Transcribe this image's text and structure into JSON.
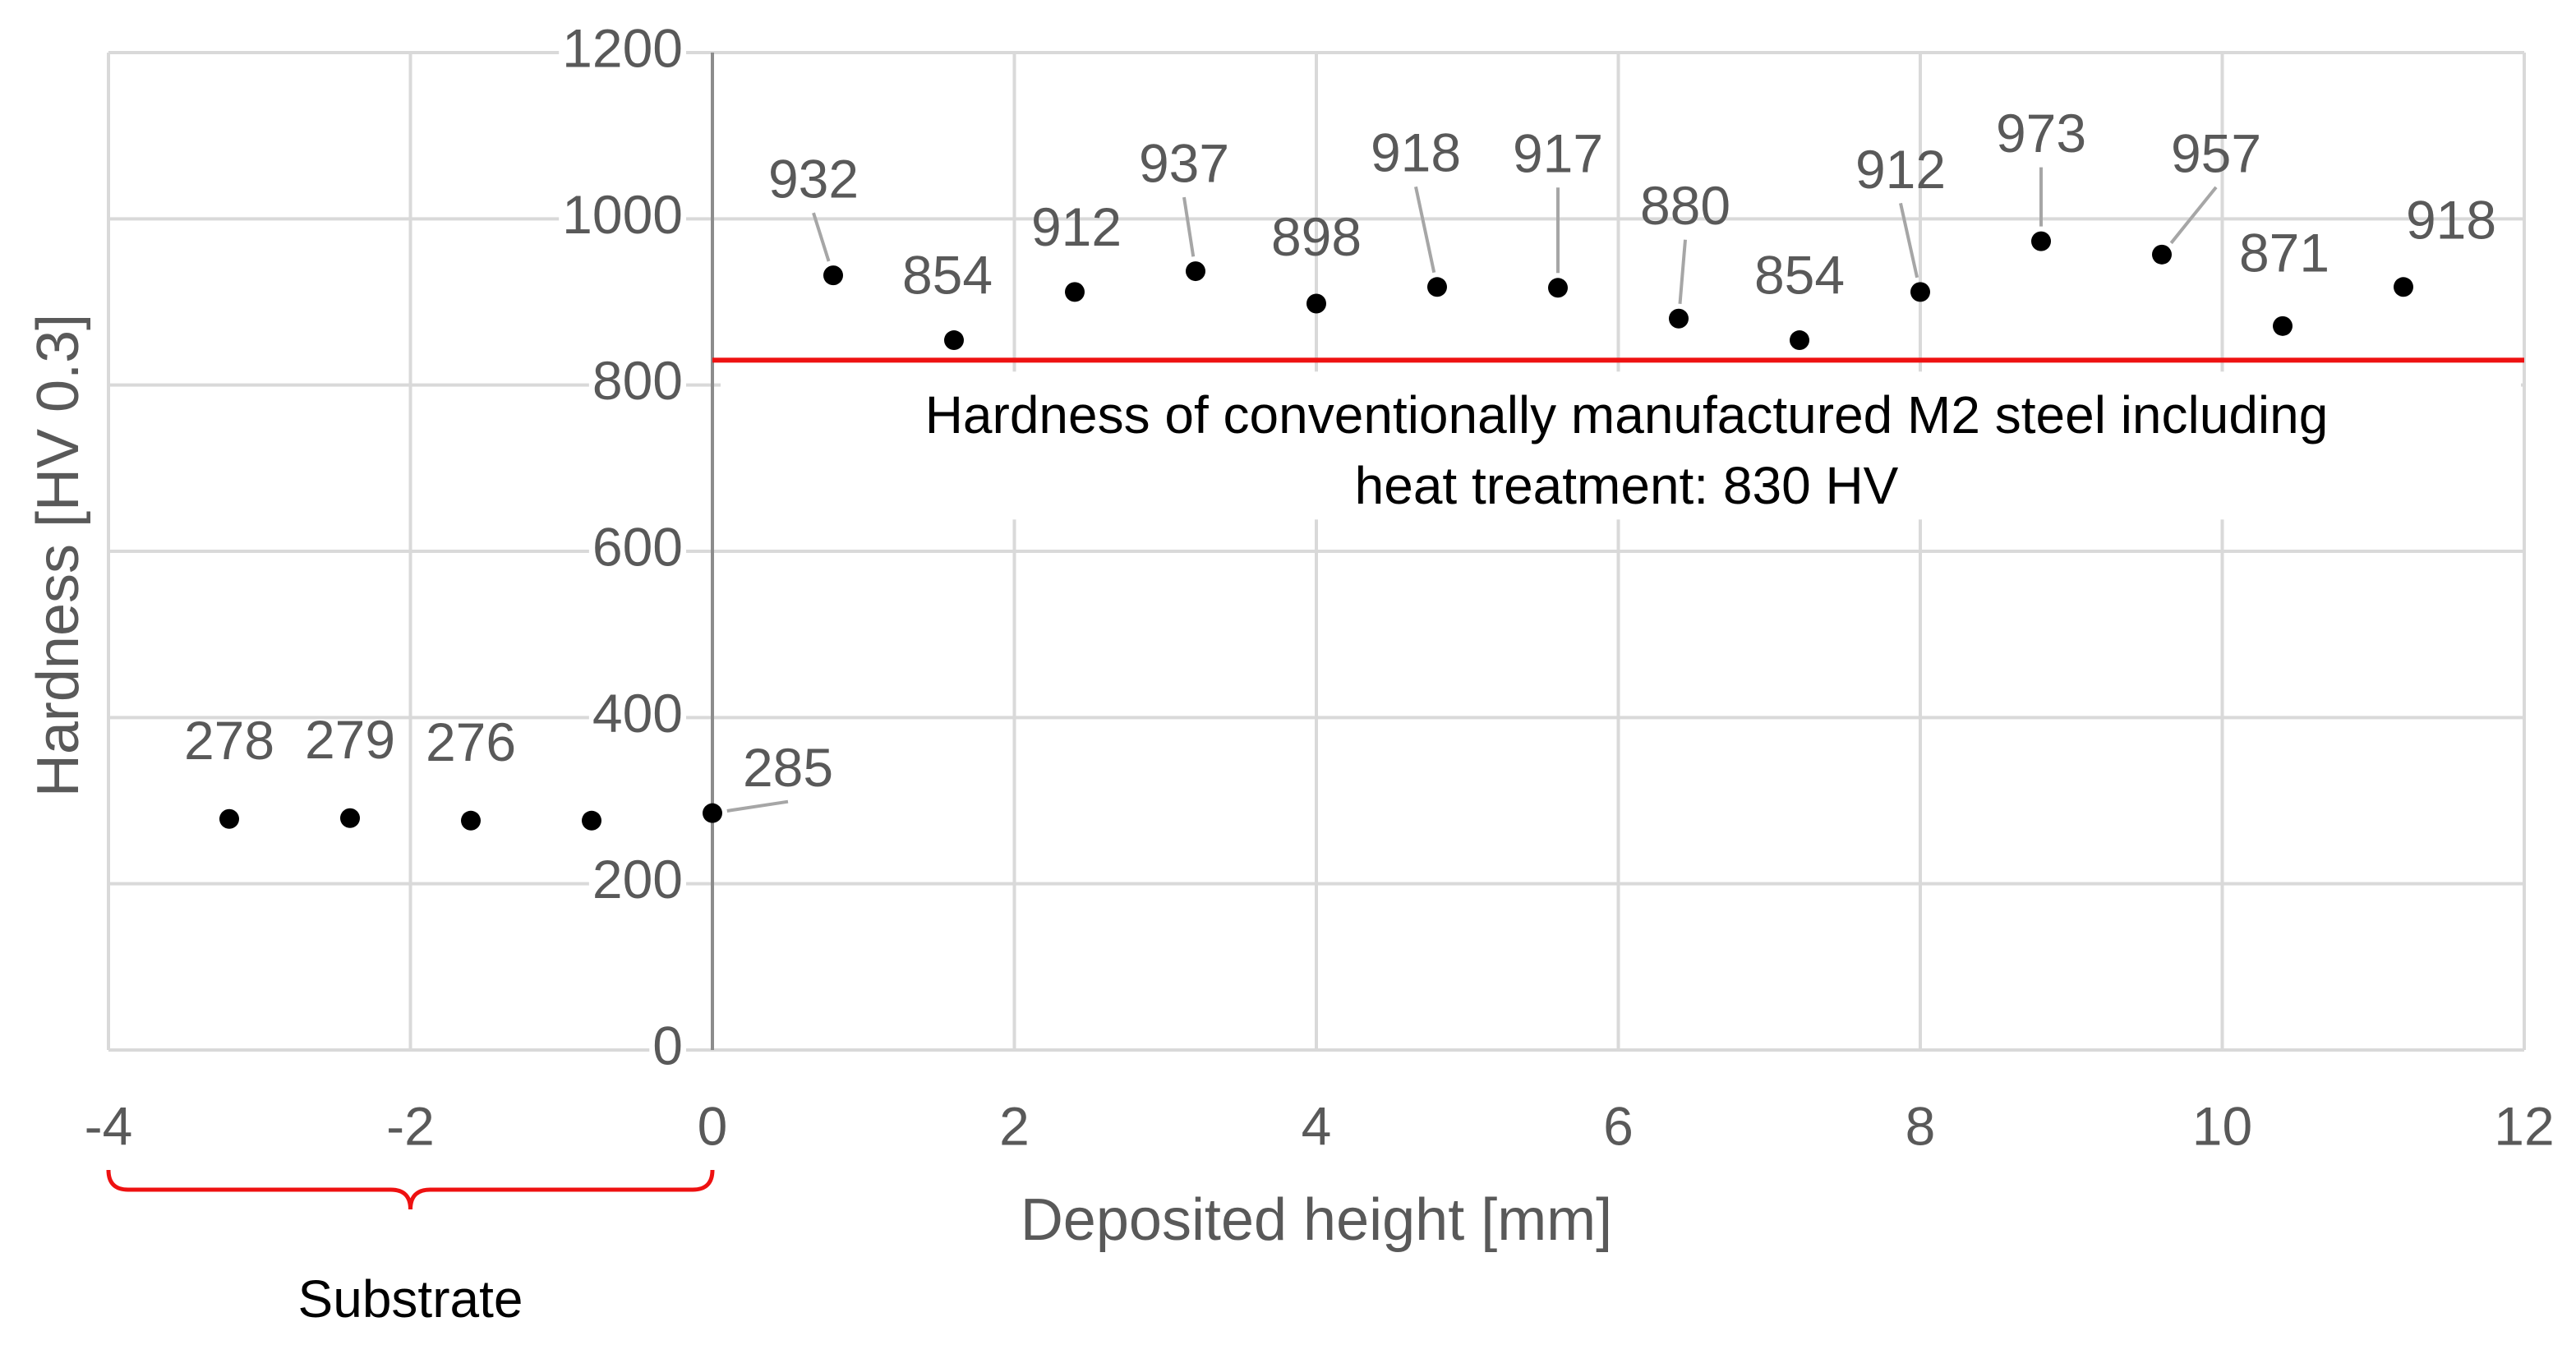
{
  "chart_data": {
    "type": "scatter",
    "x_label": "Deposited height [mm]",
    "y_label": "Hardness [HV 0.3]",
    "x": [
      -3.2,
      -2.4,
      -1.6,
      -0.8,
      0,
      0.8,
      1.6,
      2.4,
      3.2,
      4.0,
      4.8,
      5.6,
      6.4,
      7.2,
      8.0,
      8.8,
      9.6,
      10.4,
      11.2
    ],
    "values": [
      278,
      279,
      276,
      276,
      285,
      932,
      854,
      912,
      937,
      898,
      918,
      917,
      880,
      854,
      912,
      973,
      957,
      871,
      918
    ],
    "value_labels": [
      "278",
      "279",
      "276",
      null,
      "285",
      "932",
      "854",
      "912",
      "937",
      "898",
      "918",
      "917",
      "880",
      "854",
      "912",
      "973",
      "957",
      "871",
      "918"
    ],
    "color": "#000000",
    "xlim": [
      -4,
      12
    ],
    "xticks": [
      -4,
      -2,
      0,
      2,
      4,
      6,
      8,
      10,
      12
    ],
    "ylim": [
      0,
      1200
    ],
    "yticks": [
      0,
      200,
      400,
      600,
      800,
      1000,
      1200
    ],
    "grid": true,
    "reference_line": {
      "value": 830,
      "x": [
        0,
        12
      ],
      "color": "#ee1111",
      "label": [
        "Hardness of conventionally manufactured M2 steel including",
        "heat treatment: 830 HV"
      ]
    },
    "brace": {
      "x": [
        -4,
        0
      ],
      "label": "Substrate",
      "color": "#ee1111"
    }
  }
}
